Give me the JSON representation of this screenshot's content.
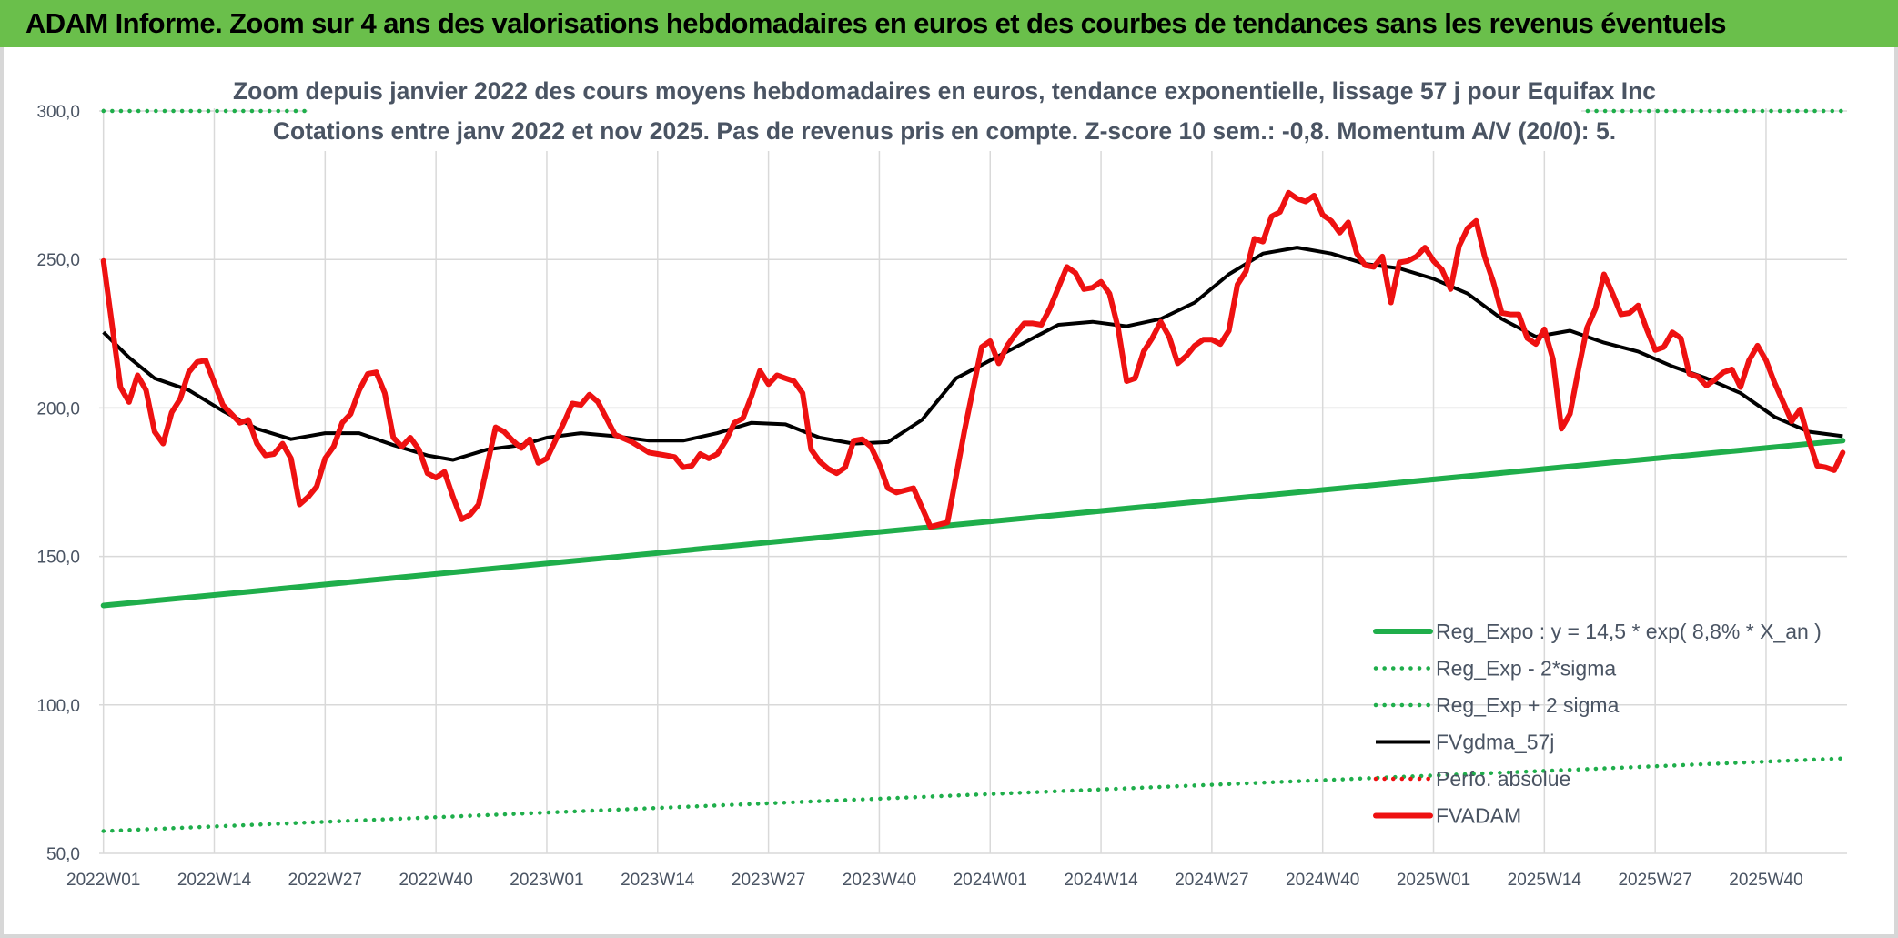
{
  "header": {
    "title": "ADAM Informe. Zoom sur 4 ans des valorisations hebdomadaires en euros et des courbes de tendances sans les revenus éventuels"
  },
  "colors": {
    "title_bar": "#6abf4b",
    "green": "#1fae4b",
    "red": "#ee1111",
    "black": "#000000",
    "axis_text": "#4a5463",
    "grid": "#d9d9d9"
  },
  "chart_data": {
    "type": "line",
    "title": "Zoom depuis janvier 2022 des cours moyens hebdomadaires en euros, tendance exponentielle, lissage 57 j pour Equifax Inc",
    "subtitle": "Cotations entre janv 2022 et nov 2025. Pas de revenus pris en compte. Z-score 10 sem.: -0,8. Momentum A/V (20/0): 5.",
    "xlabel": "",
    "ylabel": "",
    "ylim": [
      50,
      300
    ],
    "y_ticks": [
      "300,0",
      "250,0",
      "200,0",
      "150,0",
      "100,0",
      "50,0"
    ],
    "x_tick_labels": [
      "2022W01",
      "2022W14",
      "2022W27",
      "2022W40",
      "2023W01",
      "2023W14",
      "2023W27",
      "2023W40",
      "2024W01",
      "2024W14",
      "2024W27",
      "2024W40",
      "2025W01",
      "2025W14",
      "2025W27",
      "2025W40"
    ],
    "x_tick_index": [
      0,
      13,
      26,
      39,
      52,
      65,
      78,
      91,
      104,
      117,
      130,
      143,
      156,
      169,
      182,
      195
    ],
    "grid": true,
    "legend_position": "bottom-right",
    "n_weeks": 205,
    "series": [
      {
        "name": "Reg_Expo : y = 14,5 * exp( 8,8% *  X_an )",
        "style": "solid-thick",
        "color": "#1fae4b",
        "x_index": [
          0,
          204
        ],
        "values": [
          133.5,
          189
        ]
      },
      {
        "name": "Reg_Exp - 2*sigma",
        "style": "dotted",
        "color": "#1fae4b",
        "x_index": [
          0,
          204
        ],
        "values": [
          57.5,
          82
        ]
      },
      {
        "name": "Reg_Exp + 2 sigma",
        "style": "dotted",
        "color": "#1fae4b",
        "x_index": [
          0,
          24,
          171,
          204
        ],
        "values": [
          300,
          300,
          300,
          300
        ],
        "gap_after_index": 1
      },
      {
        "name": "FVgdma_57j",
        "style": "solid",
        "color": "#000000",
        "x_index": [
          0,
          3,
          6,
          10,
          14,
          18,
          22,
          26,
          30,
          34,
          38,
          41,
          45,
          49,
          52,
          56,
          60,
          64,
          68,
          72,
          76,
          80,
          84,
          88,
          92,
          96,
          100,
          104,
          108,
          112,
          116,
          120,
          124,
          128,
          132,
          136,
          140,
          144,
          148,
          152,
          156,
          160,
          164,
          168,
          172,
          176,
          180,
          184,
          188,
          192,
          196,
          200,
          204
        ],
        "values": [
          225.5,
          217,
          210,
          206,
          199,
          193,
          189.5,
          191.5,
          191.5,
          187.5,
          184,
          182.5,
          186,
          187.5,
          190,
          191.5,
          190.5,
          189,
          189,
          191.5,
          195,
          194.5,
          190,
          188,
          188.5,
          196,
          210,
          216,
          222,
          228,
          229,
          227.5,
          230,
          235.5,
          245,
          252,
          254,
          252,
          248.5,
          247,
          243.5,
          238.5,
          230,
          224,
          226,
          222,
          219,
          214,
          210,
          205,
          197,
          192,
          190.5
        ]
      },
      {
        "name": "Perfo. absolue",
        "style": "dotted",
        "color": "#ee1111",
        "x_index": [],
        "values": []
      },
      {
        "name": "FVADAM",
        "style": "solid-thick",
        "color": "#ee1111",
        "x_index": [
          0,
          2,
          3,
          4,
          5,
          6,
          7,
          8,
          9,
          10,
          11,
          12,
          14,
          16,
          17,
          18,
          19,
          20,
          21,
          22,
          23,
          24,
          25,
          26,
          27,
          28,
          29,
          30,
          31,
          32,
          33,
          34,
          35,
          36,
          37,
          38,
          39,
          40,
          41,
          42,
          43,
          44,
          46,
          47,
          48,
          49,
          50,
          51,
          52,
          54,
          55,
          56,
          57,
          58,
          60,
          62,
          64,
          65,
          66,
          67,
          68,
          69,
          70,
          71,
          72,
          73,
          74,
          75,
          76,
          77,
          78,
          79,
          80,
          81,
          82,
          83,
          84,
          85,
          86,
          87,
          88,
          89,
          90,
          91,
          92,
          93,
          95,
          97,
          99,
          101,
          103,
          104,
          105,
          106,
          107,
          108,
          109,
          110,
          111,
          112,
          113,
          114,
          115,
          116,
          117,
          118,
          119,
          120,
          121,
          122,
          123,
          124,
          125,
          126,
          127,
          128,
          129,
          130,
          131,
          132,
          133,
          134,
          135,
          136,
          137,
          138,
          139,
          140,
          141,
          142,
          143,
          144,
          145,
          146,
          147,
          148,
          149,
          150,
          151,
          152,
          153,
          154,
          155,
          156,
          157,
          158,
          159,
          160,
          161,
          162,
          163,
          164,
          165,
          166,
          167,
          168,
          169,
          170,
          171,
          172,
          173,
          174,
          175,
          176,
          177,
          178,
          179,
          180,
          181,
          182,
          183,
          184,
          185,
          186,
          187,
          188,
          189,
          190,
          191,
          192,
          193,
          194,
          195,
          196,
          197,
          198,
          199,
          200,
          201,
          202,
          203,
          204
        ],
        "values": [
          249.5,
          207,
          202,
          211,
          206,
          192,
          188,
          198.5,
          203,
          212,
          215.5,
          216,
          201,
          195,
          196,
          188,
          184,
          184.5,
          188,
          183,
          167.5,
          170,
          173.5,
          183,
          187,
          195,
          198,
          206,
          211.5,
          212,
          205,
          190,
          187,
          190,
          186,
          178,
          176.5,
          178.5,
          170,
          162.5,
          164,
          167.5,
          193.5,
          192,
          189,
          186.5,
          189.5,
          181.5,
          183,
          195,
          201.5,
          201,
          204.5,
          202,
          191,
          188.5,
          185,
          184.5,
          184,
          183.5,
          180,
          180.5,
          184.5,
          183,
          184.5,
          189,
          195,
          196.5,
          204,
          212.5,
          208,
          211,
          210,
          209,
          205,
          186,
          182,
          179.5,
          178,
          180,
          189,
          189.5,
          187,
          181,
          173,
          171.5,
          173,
          160,
          161.5,
          192.5,
          220.5,
          222.5,
          215,
          221,
          225,
          228.5,
          228.5,
          228,
          233.5,
          240.5,
          247.5,
          245.5,
          240,
          240.5,
          242.5,
          238.5,
          227,
          209,
          210,
          219,
          223.5,
          229,
          224,
          215,
          217.5,
          221,
          223,
          223,
          221.5,
          226,
          241.5,
          246,
          257,
          256,
          264.5,
          266,
          272.5,
          270.5,
          269.5,
          271.5,
          265,
          263,
          259,
          262.5,
          252,
          248,
          247.5,
          251,
          235.5,
          249,
          249.5,
          251,
          254,
          249.5,
          246.5,
          240,
          254.5,
          260.5,
          263,
          251,
          242.5,
          232,
          231.5,
          231.5,
          223.5,
          221.5,
          226.5,
          216.5,
          193,
          198,
          213,
          227,
          233.5,
          245,
          238.5,
          231.5,
          232,
          234.5,
          226.5,
          219.5,
          220.5,
          225.5,
          223.5,
          211.5,
          210.5,
          207.5,
          209.5,
          212,
          213,
          207,
          216,
          221,
          216,
          208.5,
          202,
          195.5,
          199.5,
          189.5,
          180.5,
          180,
          179,
          185
        ]
      }
    ]
  }
}
